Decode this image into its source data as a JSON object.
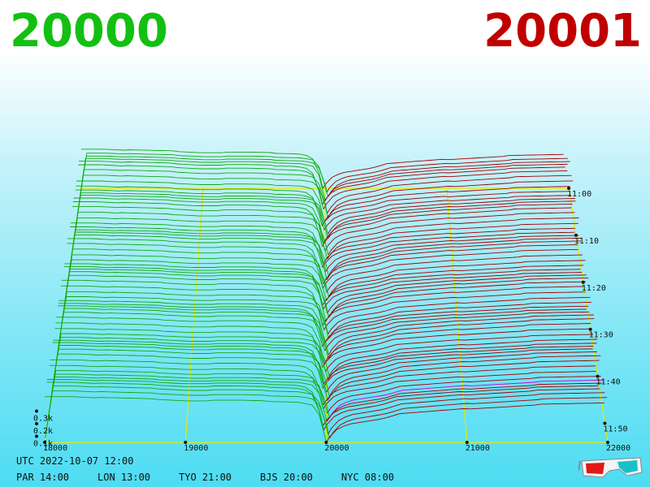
{
  "header": {
    "left_price": "20000",
    "right_price": "20001",
    "left_color": "#12c012",
    "right_color": "#c00000"
  },
  "footer": {
    "utc": "UTC 2022-10-07 12:00",
    "cities": [
      {
        "label": "PAR 14:00"
      },
      {
        "label": "LON 13:00"
      },
      {
        "label": "TYO 21:00"
      },
      {
        "label": "BJS 20:00"
      },
      {
        "label": "NYC 08:00"
      }
    ],
    "icon": "3d-glasses-icon"
  },
  "chart_data": {
    "type": "area",
    "x_ticks": [
      "18000",
      "19000",
      "20000",
      "21000",
      "22000"
    ],
    "y_ticks": [
      "0.1k",
      "0.2k",
      "0.3k"
    ],
    "time_ticks": [
      "11:00",
      "11:10",
      "11:20",
      "11:30",
      "11:40",
      "11:50"
    ],
    "xlim": [
      18000,
      22000
    ],
    "bid_color": "#12a812",
    "ask_color": "#a00000",
    "latest_ask_color": "#d000d0",
    "grid_color": "#e8e800",
    "mid_price": 20000,
    "snapshots": 62,
    "bid_profile": [
      {
        "price": 18000,
        "depth": 0.33
      },
      {
        "price": 18200,
        "depth": 0.33
      },
      {
        "price": 18400,
        "depth": 0.32
      },
      {
        "price": 18800,
        "depth": 0.31
      },
      {
        "price": 19000,
        "depth": 0.3
      },
      {
        "price": 19400,
        "depth": 0.3
      },
      {
        "price": 19800,
        "depth": 0.29
      },
      {
        "price": 19900,
        "depth": 0.27
      },
      {
        "price": 19950,
        "depth": 0.2
      },
      {
        "price": 20000,
        "depth": 0.0
      }
    ],
    "ask_profile": [
      {
        "price": 20000,
        "depth": 0.0
      },
      {
        "price": 20050,
        "depth": 0.08
      },
      {
        "price": 20150,
        "depth": 0.13
      },
      {
        "price": 20400,
        "depth": 0.17
      },
      {
        "price": 20500,
        "depth": 0.2
      },
      {
        "price": 21000,
        "depth": 0.24
      },
      {
        "price": 21500,
        "depth": 0.27
      },
      {
        "price": 22000,
        "depth": 0.28
      }
    ]
  }
}
